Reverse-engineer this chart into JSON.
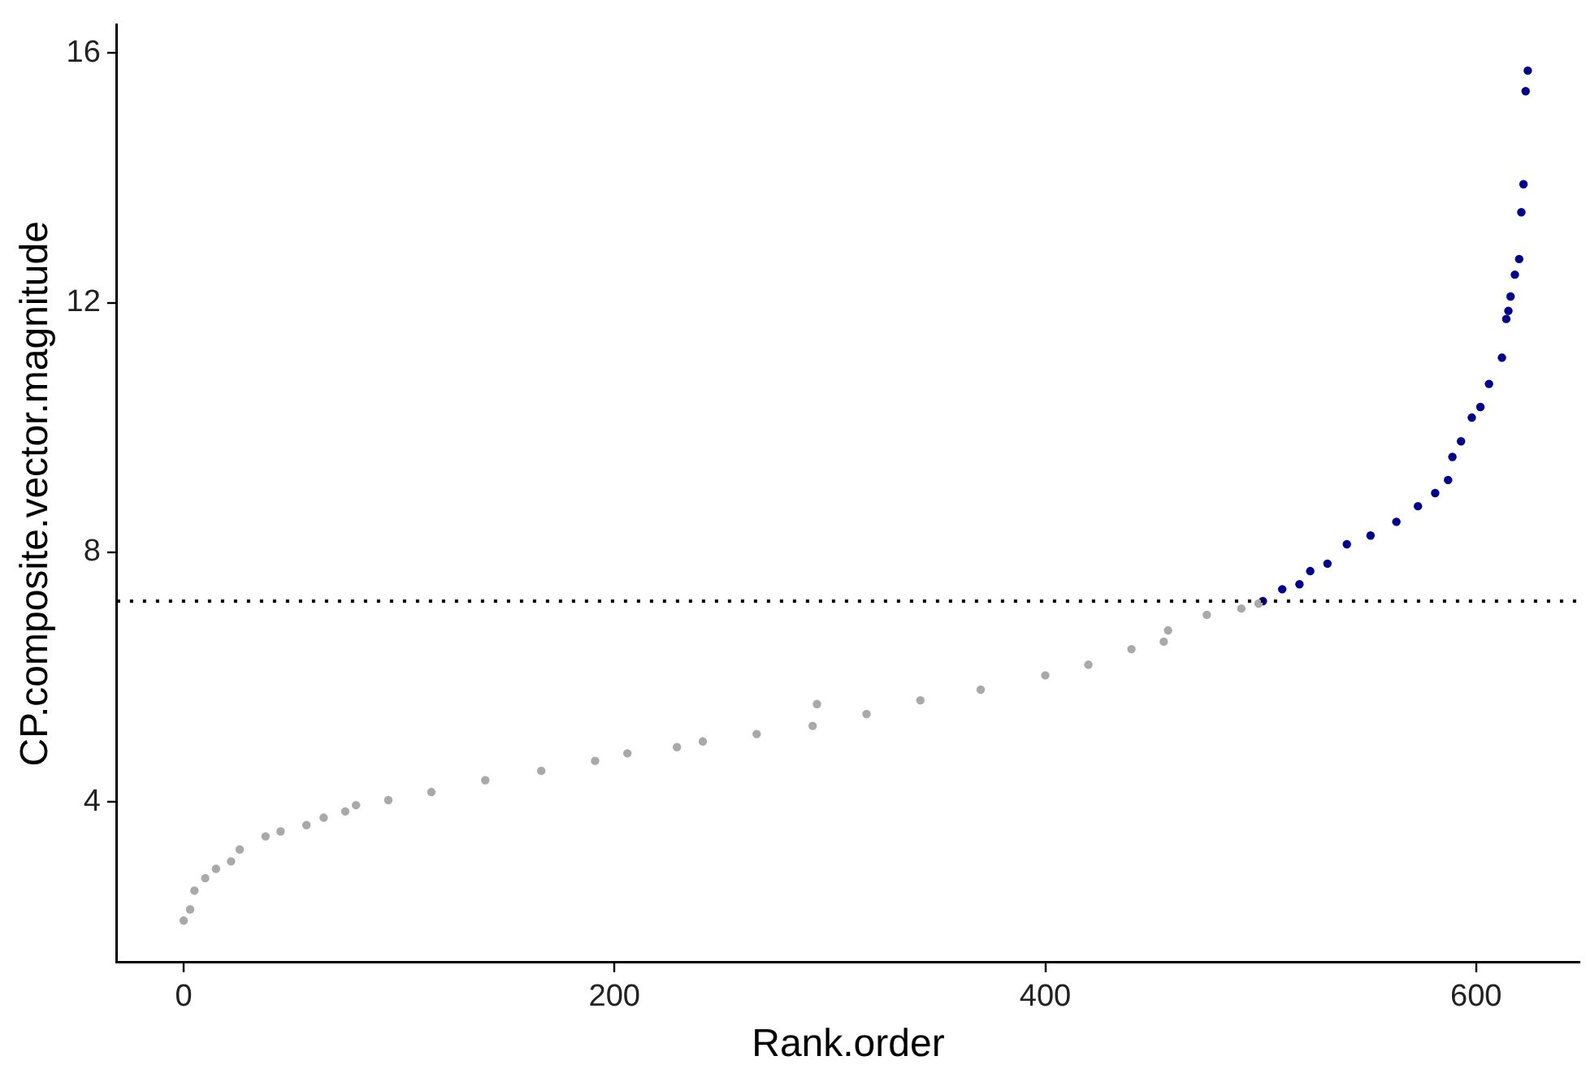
{
  "chart_data": {
    "type": "scatter",
    "xlabel": "Rank.order",
    "ylabel": "CP.composite.vector.magnitude",
    "xlim": [
      -31,
      648
    ],
    "ylim": [
      1.43,
      16.45
    ],
    "xticks": [
      0,
      200,
      400,
      600
    ],
    "yticks": [
      4,
      8,
      12,
      16
    ],
    "grid": false,
    "legend": false,
    "marker": "circle",
    "series": [
      {
        "color": "#a9a9a9",
        "x": [
          0,
          3,
          5,
          10,
          15,
          22,
          26,
          38,
          45,
          57,
          65,
          75,
          80,
          95,
          115,
          140,
          166,
          191,
          206,
          229,
          241,
          266,
          292,
          294,
          317,
          342,
          370,
          400,
          420,
          440,
          455,
          457,
          475,
          491,
          499
        ],
        "values": [
          2.1,
          2.28,
          2.58,
          2.78,
          2.93,
          3.05,
          3.24,
          3.45,
          3.53,
          3.63,
          3.75,
          3.85,
          3.95,
          4.03,
          4.16,
          4.35,
          4.5,
          4.66,
          4.78,
          4.88,
          4.97,
          5.09,
          5.22,
          5.57,
          5.41,
          5.63,
          5.8,
          6.03,
          6.2,
          6.45,
          6.57,
          6.75,
          7.0,
          7.1,
          7.18
        ]
      },
      {
        "color": "#00008b",
        "x": [
          501,
          510,
          518,
          523,
          531,
          540,
          551,
          563,
          573,
          581,
          587,
          589,
          593,
          598,
          602,
          606,
          612,
          614,
          615,
          616,
          618,
          620,
          621,
          622,
          623,
          624
        ],
        "values": [
          7.22,
          7.41,
          7.49,
          7.7,
          7.82,
          8.13,
          8.27,
          8.49,
          8.74,
          8.95,
          9.16,
          9.53,
          9.78,
          10.16,
          10.33,
          10.7,
          11.12,
          11.74,
          11.87,
          12.1,
          12.45,
          12.7,
          13.45,
          13.9,
          15.39,
          15.72
        ]
      }
    ],
    "ref_lines": [
      {
        "axis": "y",
        "value": 7.22,
        "color": "#000000",
        "line_style": "dotted"
      }
    ]
  }
}
